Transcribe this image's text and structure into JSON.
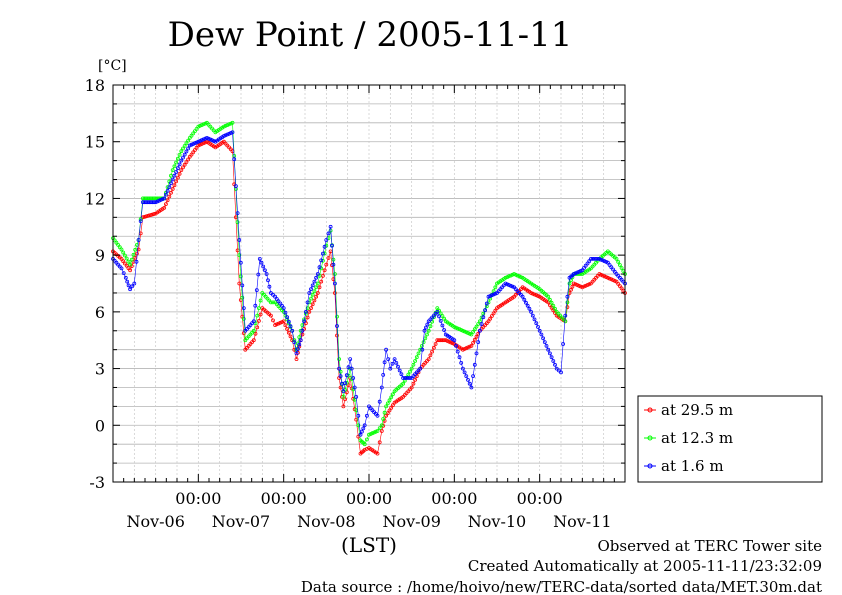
{
  "chart_data": {
    "type": "line",
    "title": "Dew Point / 2005-11-11",
    "ylabel": "[°C]",
    "xlabel": "(LST)",
    "ylim": [
      -3,
      18
    ],
    "yticks": [
      -3,
      0,
      3,
      6,
      9,
      12,
      15,
      18
    ],
    "x_unit": "days since 2005-11-05 12:00 (LST)",
    "xlim": [
      0,
      6
    ],
    "x_time_ticks": [
      {
        "x": 1,
        "label": "00:00"
      },
      {
        "x": 2,
        "label": "00:00"
      },
      {
        "x": 3,
        "label": "00:00"
      },
      {
        "x": 4,
        "label": "00:00"
      },
      {
        "x": 5,
        "label": "00:00"
      }
    ],
    "x_date_labels": [
      {
        "x": 0.5,
        "label": "Nov-06"
      },
      {
        "x": 1.5,
        "label": "Nov-07"
      },
      {
        "x": 2.5,
        "label": "Nov-08"
      },
      {
        "x": 3.5,
        "label": "Nov-09"
      },
      {
        "x": 4.5,
        "label": "Nov-10"
      },
      {
        "x": 5.5,
        "label": "Nov-11"
      }
    ],
    "grid": true,
    "legend_position": "right",
    "series": [
      {
        "name": "at 29.5 m",
        "color": "#ff0000",
        "points": [
          [
            0,
            9.2
          ],
          [
            0.1,
            8.8
          ],
          [
            0.2,
            8.2
          ],
          [
            0.3,
            9.3
          ],
          [
            0.35,
            11.0
          ],
          [
            0.5,
            11.2
          ],
          [
            0.6,
            11.5
          ],
          [
            0.7,
            12.5
          ],
          [
            0.8,
            13.5
          ],
          [
            0.9,
            14.2
          ],
          [
            1.0,
            14.8
          ],
          [
            1.1,
            15.0
          ],
          [
            1.2,
            14.7
          ],
          [
            1.3,
            15.0
          ],
          [
            1.4,
            14.5
          ],
          [
            1.48,
            7.5
          ],
          [
            1.55,
            4.0
          ],
          [
            1.65,
            4.5
          ],
          [
            1.75,
            6.2
          ],
          [
            1.85,
            5.8
          ],
          [
            1.9,
            5.3
          ],
          [
            2.0,
            5.5
          ],
          [
            2.1,
            4.5
          ],
          [
            2.15,
            3.5
          ],
          [
            2.2,
            4.5
          ],
          [
            2.3,
            6.0
          ],
          [
            2.4,
            7.0
          ],
          [
            2.5,
            8.5
          ],
          [
            2.55,
            9.2
          ],
          [
            2.6,
            7.0
          ],
          [
            2.65,
            2.5
          ],
          [
            2.7,
            1.0
          ],
          [
            2.78,
            2.5
          ],
          [
            2.85,
            0.3
          ],
          [
            2.9,
            -1.5
          ],
          [
            2.95,
            -1.3
          ],
          [
            3.0,
            -1.2
          ],
          [
            3.1,
            -1.5
          ],
          [
            3.15,
            -0.3
          ],
          [
            3.2,
            0.5
          ],
          [
            3.3,
            1.2
          ],
          [
            3.4,
            1.5
          ],
          [
            3.5,
            2.0
          ],
          [
            3.6,
            3.0
          ],
          [
            3.7,
            3.5
          ],
          [
            3.8,
            4.5
          ],
          [
            3.9,
            4.5
          ],
          [
            4.0,
            4.3
          ],
          [
            4.1,
            4.0
          ],
          [
            4.2,
            4.2
          ],
          [
            4.3,
            5.0
          ],
          [
            4.4,
            5.5
          ],
          [
            4.5,
            6.2
          ],
          [
            4.6,
            6.5
          ],
          [
            4.7,
            6.8
          ],
          [
            4.8,
            7.3
          ],
          [
            4.9,
            7.0
          ],
          [
            5.0,
            6.8
          ],
          [
            5.1,
            6.5
          ],
          [
            5.2,
            5.8
          ],
          [
            5.3,
            5.5
          ],
          [
            5.35,
            7.0
          ],
          [
            5.4,
            7.5
          ],
          [
            5.5,
            7.3
          ],
          [
            5.6,
            7.5
          ],
          [
            5.7,
            8.0
          ],
          [
            5.8,
            7.8
          ],
          [
            5.9,
            7.6
          ],
          [
            6.0,
            7.0
          ]
        ]
      },
      {
        "name": "at 12.3 m",
        "color": "#00ff00",
        "points": [
          [
            0,
            9.9
          ],
          [
            0.1,
            9.3
          ],
          [
            0.2,
            8.5
          ],
          [
            0.3,
            9.8
          ],
          [
            0.35,
            12.0
          ],
          [
            0.5,
            12.0
          ],
          [
            0.6,
            12.0
          ],
          [
            0.7,
            13.5
          ],
          [
            0.8,
            14.5
          ],
          [
            0.9,
            15.2
          ],
          [
            1.0,
            15.8
          ],
          [
            1.1,
            16.0
          ],
          [
            1.2,
            15.5
          ],
          [
            1.3,
            15.8
          ],
          [
            1.4,
            16.0
          ],
          [
            1.48,
            9.0
          ],
          [
            1.55,
            4.5
          ],
          [
            1.65,
            5.0
          ],
          [
            1.75,
            7.0
          ],
          [
            1.85,
            6.5
          ],
          [
            1.9,
            6.5
          ],
          [
            2.0,
            6.0
          ],
          [
            2.1,
            5.0
          ],
          [
            2.15,
            4.0
          ],
          [
            2.2,
            5.0
          ],
          [
            2.3,
            6.5
          ],
          [
            2.4,
            7.5
          ],
          [
            2.5,
            9.5
          ],
          [
            2.55,
            10.3
          ],
          [
            2.6,
            8.0
          ],
          [
            2.65,
            3.5
          ],
          [
            2.7,
            1.5
          ],
          [
            2.78,
            3.0
          ],
          [
            2.85,
            0.8
          ],
          [
            2.9,
            -0.8
          ],
          [
            2.95,
            -1.0
          ],
          [
            3.0,
            -0.5
          ],
          [
            3.1,
            -0.3
          ],
          [
            3.15,
            0.0
          ],
          [
            3.2,
            1.0
          ],
          [
            3.3,
            1.8
          ],
          [
            3.4,
            2.2
          ],
          [
            3.5,
            3.0
          ],
          [
            3.6,
            4.0
          ],
          [
            3.7,
            5.0
          ],
          [
            3.8,
            6.2
          ],
          [
            3.9,
            5.5
          ],
          [
            4.0,
            5.2
          ],
          [
            4.1,
            5.0
          ],
          [
            4.2,
            4.8
          ],
          [
            4.3,
            5.5
          ],
          [
            4.4,
            6.5
          ],
          [
            4.5,
            7.5
          ],
          [
            4.6,
            7.8
          ],
          [
            4.7,
            8.0
          ],
          [
            4.8,
            7.8
          ],
          [
            4.9,
            7.5
          ],
          [
            5.0,
            7.2
          ],
          [
            5.1,
            6.8
          ],
          [
            5.2,
            6.0
          ],
          [
            5.3,
            5.5
          ],
          [
            5.35,
            7.5
          ],
          [
            5.4,
            8.0
          ],
          [
            5.5,
            8.0
          ],
          [
            5.6,
            8.3
          ],
          [
            5.7,
            8.8
          ],
          [
            5.8,
            9.2
          ],
          [
            5.9,
            8.8
          ],
          [
            6.0,
            8.0
          ]
        ]
      },
      {
        "name": "at 1.6 m",
        "color": "#0000ff",
        "points": [
          [
            0,
            8.8
          ],
          [
            0.1,
            8.3
          ],
          [
            0.15,
            7.8
          ],
          [
            0.2,
            7.2
          ],
          [
            0.25,
            7.5
          ],
          [
            0.3,
            9.8
          ],
          [
            0.35,
            11.8
          ],
          [
            0.5,
            11.8
          ],
          [
            0.6,
            12.0
          ],
          [
            0.7,
            13.0
          ],
          [
            0.8,
            14.0
          ],
          [
            0.9,
            14.8
          ],
          [
            1.0,
            15.0
          ],
          [
            1.1,
            15.2
          ],
          [
            1.2,
            15.0
          ],
          [
            1.3,
            15.3
          ],
          [
            1.4,
            15.5
          ],
          [
            1.48,
            9.8
          ],
          [
            1.55,
            5.0
          ],
          [
            1.65,
            5.5
          ],
          [
            1.72,
            8.8
          ],
          [
            1.8,
            8.0
          ],
          [
            1.85,
            7.0
          ],
          [
            1.9,
            6.8
          ],
          [
            2.0,
            6.2
          ],
          [
            2.1,
            5.0
          ],
          [
            2.15,
            3.8
          ],
          [
            2.2,
            4.5
          ],
          [
            2.3,
            7.0
          ],
          [
            2.4,
            8.0
          ],
          [
            2.5,
            9.8
          ],
          [
            2.55,
            10.5
          ],
          [
            2.6,
            7.5
          ],
          [
            2.65,
            3.0
          ],
          [
            2.7,
            1.8
          ],
          [
            2.78,
            3.5
          ],
          [
            2.85,
            1.5
          ],
          [
            2.9,
            -0.5
          ],
          [
            2.95,
            0.0
          ],
          [
            3.0,
            1.0
          ],
          [
            3.1,
            0.5
          ],
          [
            3.15,
            2.0
          ],
          [
            3.2,
            4.0
          ],
          [
            3.25,
            3.0
          ],
          [
            3.3,
            3.5
          ],
          [
            3.4,
            2.5
          ],
          [
            3.5,
            2.5
          ],
          [
            3.6,
            3.0
          ],
          [
            3.65,
            5.0
          ],
          [
            3.7,
            5.5
          ],
          [
            3.8,
            6.0
          ],
          [
            3.9,
            4.8
          ],
          [
            4.0,
            4.5
          ],
          [
            4.1,
            3.0
          ],
          [
            4.2,
            2.0
          ],
          [
            4.3,
            5.0
          ],
          [
            4.4,
            6.8
          ],
          [
            4.5,
            7.0
          ],
          [
            4.6,
            7.5
          ],
          [
            4.7,
            7.3
          ],
          [
            4.8,
            6.8
          ],
          [
            4.9,
            6.0
          ],
          [
            5.0,
            5.0
          ],
          [
            5.1,
            4.0
          ],
          [
            5.2,
            3.0
          ],
          [
            5.25,
            2.8
          ],
          [
            5.3,
            5.8
          ],
          [
            5.35,
            7.8
          ],
          [
            5.4,
            8.0
          ],
          [
            5.5,
            8.2
          ],
          [
            5.6,
            8.8
          ],
          [
            5.7,
            8.8
          ],
          [
            5.8,
            8.6
          ],
          [
            5.9,
            8.0
          ],
          [
            6.0,
            7.5
          ]
        ]
      }
    ]
  },
  "footer": {
    "line1": "Observed at TERC Tower site",
    "line2": "Created Automatically at 2005-11-11/23:32:09",
    "line3": "Data source : /home/hoivo/new/TERC-data/sorted  data/MET.30m.dat"
  }
}
